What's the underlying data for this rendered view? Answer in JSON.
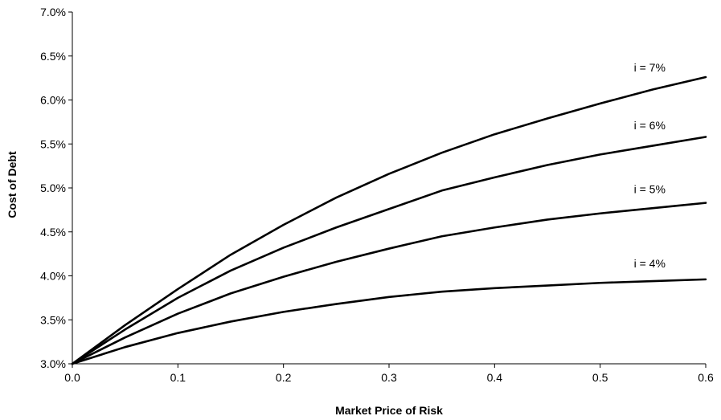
{
  "chart_data": {
    "type": "line",
    "title": "",
    "xlabel": "Market Price of Risk",
    "ylabel": "Cost of Debt",
    "xlim": [
      0.0,
      0.6
    ],
    "ylim": [
      3.0,
      7.0
    ],
    "x_ticks": [
      "0.0",
      "0.1",
      "0.2",
      "0.3",
      "0.4",
      "0.5",
      "0.6"
    ],
    "y_ticks": [
      "3.0%",
      "3.5%",
      "4.0%",
      "4.5%",
      "5.0%",
      "5.5%",
      "6.0%",
      "6.5%",
      "7.0%"
    ],
    "grid": false,
    "legend": "none",
    "line_color": "#000000",
    "x": [
      0.0,
      0.05,
      0.1,
      0.15,
      0.2,
      0.25,
      0.3,
      0.35,
      0.4,
      0.45,
      0.5,
      0.55,
      0.6
    ],
    "series": [
      {
        "name": "i = 7%",
        "values": [
          3.0,
          3.44,
          3.85,
          4.24,
          4.58,
          4.89,
          5.16,
          5.4,
          5.61,
          5.79,
          5.96,
          6.12,
          6.26
        ]
      },
      {
        "name": "i = 6%",
        "values": [
          3.0,
          3.39,
          3.75,
          4.06,
          4.32,
          4.55,
          4.76,
          4.97,
          5.12,
          5.26,
          5.38,
          5.48,
          5.58
        ]
      },
      {
        "name": "i = 5%",
        "values": [
          3.0,
          3.3,
          3.57,
          3.8,
          3.99,
          4.16,
          4.31,
          4.45,
          4.55,
          4.64,
          4.71,
          4.77,
          4.83
        ]
      },
      {
        "name": "i = 4%",
        "values": [
          3.0,
          3.19,
          3.35,
          3.48,
          3.59,
          3.68,
          3.76,
          3.82,
          3.86,
          3.89,
          3.92,
          3.94,
          3.96
        ]
      }
    ]
  }
}
